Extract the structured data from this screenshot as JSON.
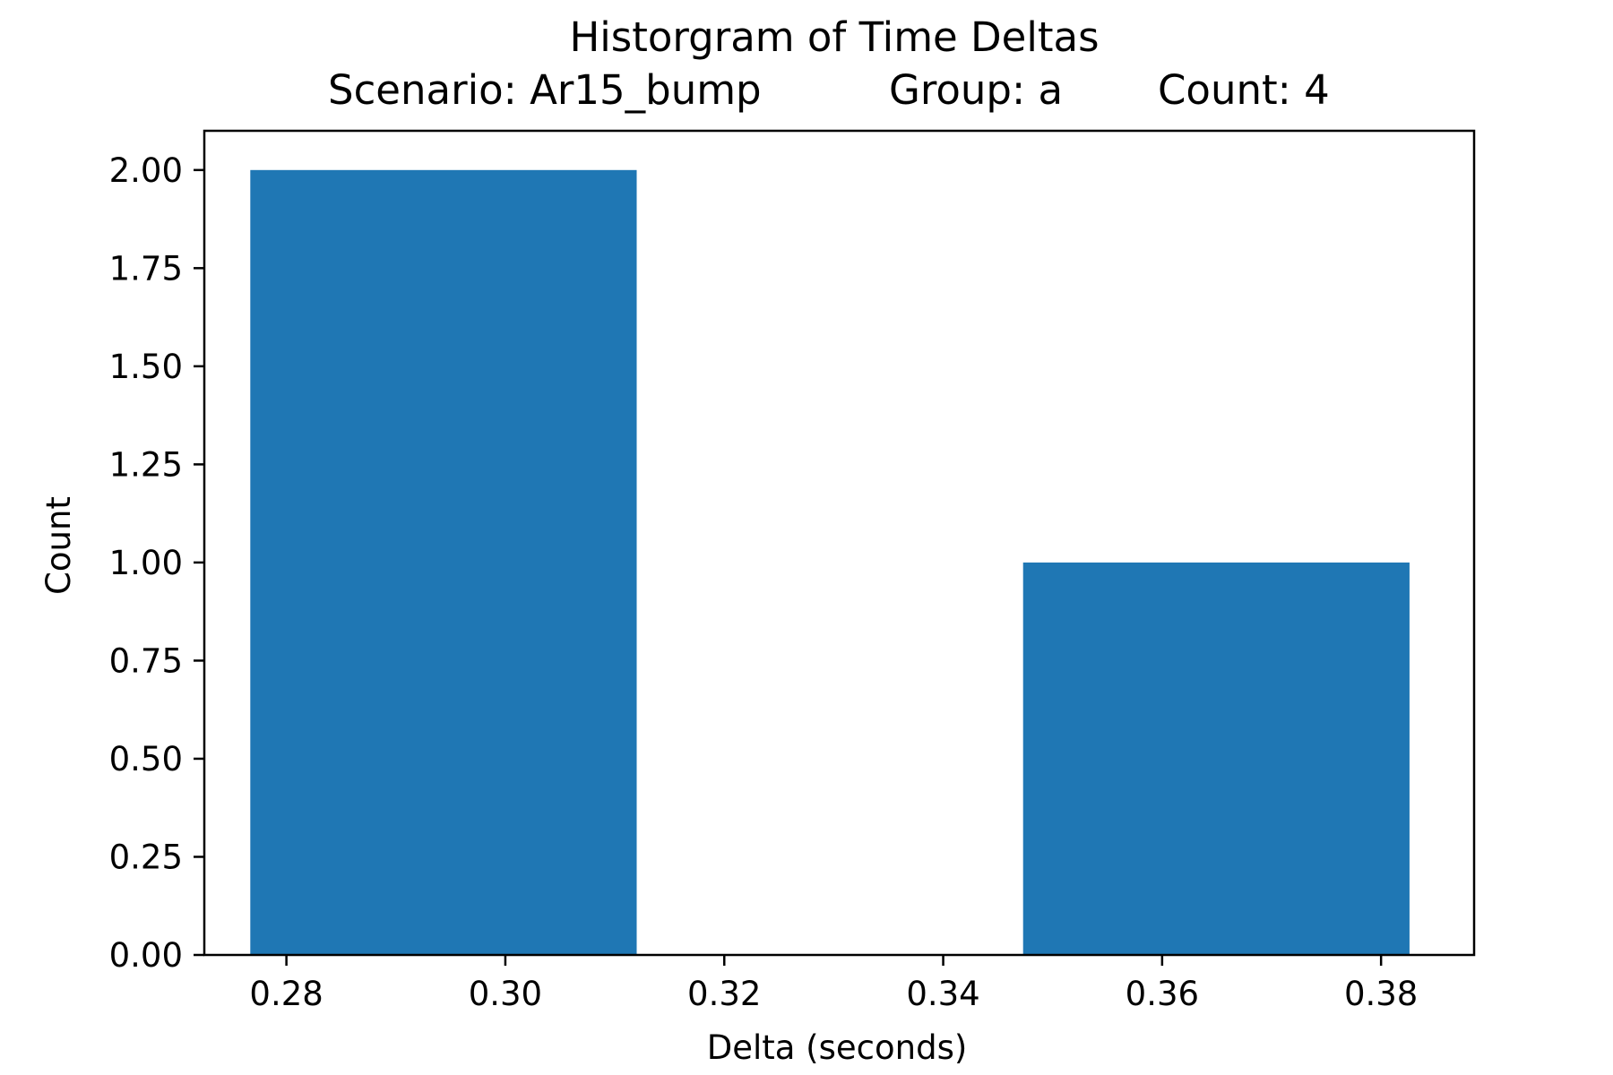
{
  "chart_data": {
    "type": "bar",
    "title": "Historgram of Time Deltas",
    "subtitle": {
      "scenario": "Scenario: Ar15_bump",
      "group": "Group: a",
      "count": "Count: 4"
    },
    "xlabel": "Delta (seconds)",
    "ylabel": "Count",
    "xlim": [
      0.2725,
      0.3885
    ],
    "ylim": [
      0,
      2.1
    ],
    "x_ticks": [
      "0.28",
      "0.30",
      "0.32",
      "0.34",
      "0.36",
      "0.38"
    ],
    "y_ticks": [
      "0.00",
      "0.25",
      "0.50",
      "0.75",
      "1.00",
      "1.25",
      "1.50",
      "1.75",
      "2.00"
    ],
    "bins": [
      {
        "x0": 0.2767,
        "x1": 0.312,
        "value": 2
      },
      {
        "x0": 0.312,
        "x1": 0.3473,
        "value": 0
      },
      {
        "x0": 0.3473,
        "x1": 0.3826,
        "value": 1
      }
    ],
    "bar_color": "#1f77b4",
    "grid": false,
    "legend": "none"
  }
}
